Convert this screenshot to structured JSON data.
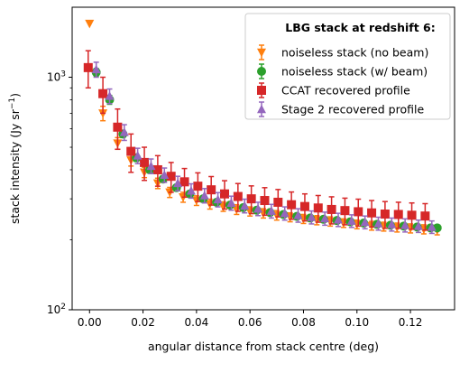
{
  "chart_data": {
    "type": "scatter",
    "xlabel": "angular distance from stack centre (deg)",
    "ylabel_main": "stack intensity (Jy sr",
    "ylabel_sup": "−1",
    "ylabel_close": ")",
    "yscale": "log",
    "xlim": [
      -0.0065,
      0.1365
    ],
    "ylim": [
      100,
      2000
    ],
    "xticks": [
      0.0,
      0.02,
      0.04,
      0.06,
      0.08,
      0.1,
      0.12
    ],
    "xtick_labels": [
      "0.00",
      "0.02",
      "0.04",
      "0.06",
      "0.08",
      "0.10",
      "0.12"
    ],
    "ytick_major": [
      {
        "value": 100,
        "base": "10",
        "exp": "2"
      },
      {
        "value": 1000,
        "base": "10",
        "exp": "3"
      }
    ],
    "ytick_minor": [
      200,
      300,
      400,
      500,
      600,
      700,
      800,
      900
    ],
    "grid": false,
    "legend": {
      "placement": "top-right",
      "title": "LBG stack at redshift 6:",
      "entries": [
        "noiseless stack (no beam)",
        "noiseless stack (w/ beam)",
        "CCAT recovered profile",
        "Stage 2 recovered profile"
      ]
    },
    "series": [
      {
        "name": "noiseless stack (no beam)",
        "marker": "triangle-down",
        "color": "#ff7f0e",
        "x": [
          0.0,
          0.005,
          0.0105,
          0.0155,
          0.0205,
          0.0255,
          0.03,
          0.035,
          0.04,
          0.045,
          0.05,
          0.055,
          0.06,
          0.065,
          0.07,
          0.075,
          0.08,
          0.085,
          0.09,
          0.095,
          0.1,
          0.1055,
          0.11,
          0.115,
          0.12,
          0.125,
          0.13
        ],
        "y": [
          1700,
          700,
          520,
          440,
          390,
          350,
          320,
          305,
          295,
          285,
          278,
          270,
          265,
          260,
          255,
          250,
          246,
          243,
          240,
          236,
          233,
          230,
          228,
          226,
          224,
          222,
          220
        ],
        "err": [
          0,
          50,
          30,
          25,
          20,
          18,
          16,
          15,
          14,
          14,
          13,
          13,
          12,
          12,
          12,
          11,
          11,
          11,
          11,
          10,
          10,
          10,
          10,
          10,
          10,
          10,
          10
        ]
      },
      {
        "name": "noiseless stack (w/ beam)",
        "marker": "circle",
        "color": "#2ca02c",
        "x": [
          0.0025,
          0.0075,
          0.0125,
          0.0175,
          0.0225,
          0.0275,
          0.0325,
          0.0375,
          0.0425,
          0.0475,
          0.0525,
          0.0575,
          0.0625,
          0.0675,
          0.0725,
          0.0775,
          0.0825,
          0.0875,
          0.0925,
          0.0975,
          0.1025,
          0.1075,
          0.1125,
          0.1175,
          0.1225,
          0.1275,
          0.13
        ],
        "y": [
          1050,
          800,
          570,
          450,
          400,
          365,
          335,
          315,
          300,
          290,
          282,
          275,
          268,
          262,
          257,
          252,
          248,
          245,
          242,
          239,
          236,
          233,
          231,
          229,
          227,
          225,
          225
        ],
        "err": [
          40,
          35,
          20,
          15,
          12,
          10,
          10,
          9,
          9,
          8,
          8,
          8,
          8,
          7,
          7,
          7,
          7,
          7,
          7,
          7,
          7,
          7,
          6,
          6,
          6,
          6,
          6
        ]
      },
      {
        "name": "CCAT recovered profile",
        "marker": "square",
        "color": "#d62728",
        "x": [
          -0.0005,
          0.005,
          0.0105,
          0.0155,
          0.0205,
          0.0255,
          0.0305,
          0.0355,
          0.0405,
          0.0455,
          0.0505,
          0.0555,
          0.0605,
          0.0655,
          0.0705,
          0.0755,
          0.0805,
          0.0855,
          0.0905,
          0.0955,
          0.1005,
          0.1055,
          0.1105,
          0.1155,
          0.1205,
          0.1255
        ],
        "y": [
          1100,
          850,
          610,
          480,
          430,
          400,
          375,
          355,
          340,
          328,
          315,
          307,
          300,
          295,
          290,
          283,
          278,
          274,
          270,
          267,
          264,
          261,
          258,
          257,
          255,
          253
        ],
        "err": [
          200,
          150,
          120,
          90,
          70,
          60,
          55,
          50,
          48,
          46,
          44,
          42,
          41,
          40,
          39,
          38,
          37,
          36,
          36,
          35,
          35,
          34,
          34,
          33,
          33,
          33
        ]
      },
      {
        "name": "Stage 2 recovered profile",
        "marker": "triangle-up",
        "color": "#9467bd",
        "x": [
          0.0025,
          0.0075,
          0.013,
          0.018,
          0.023,
          0.028,
          0.033,
          0.038,
          0.043,
          0.048,
          0.053,
          0.058,
          0.063,
          0.068,
          0.073,
          0.078,
          0.083,
          0.088,
          0.093,
          0.098,
          0.103,
          0.108,
          0.113,
          0.118,
          0.123,
          0.128
        ],
        "y": [
          1080,
          830,
          580,
          460,
          415,
          380,
          350,
          325,
          310,
          298,
          288,
          280,
          272,
          266,
          260,
          255,
          250,
          247,
          244,
          241,
          238,
          235,
          233,
          231,
          229,
          227
        ],
        "err": [
          80,
          60,
          45,
          35,
          30,
          27,
          25,
          23,
          22,
          21,
          20,
          19,
          18,
          18,
          17,
          17,
          16,
          16,
          16,
          15,
          15,
          15,
          15,
          15,
          14,
          14
        ]
      }
    ]
  }
}
